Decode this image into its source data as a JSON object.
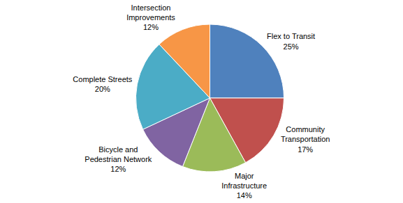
{
  "chart_data": {
    "type": "pie",
    "categories": [
      "Flex to Transit",
      "Community Transportation",
      "Major Infrastructure",
      "Bicycle and Pedestrian Network",
      "Complete Streets",
      "Intersection Improvements"
    ],
    "values": [
      25,
      17,
      14,
      12,
      20,
      12
    ],
    "value_labels": [
      "25%",
      "17%",
      "14%",
      "12%",
      "20%",
      "12%"
    ],
    "colors": [
      "#4f81bd",
      "#c0504d",
      "#9bbb59",
      "#8064a2",
      "#4bacc6",
      "#f79646"
    ],
    "data_labels": true
  }
}
